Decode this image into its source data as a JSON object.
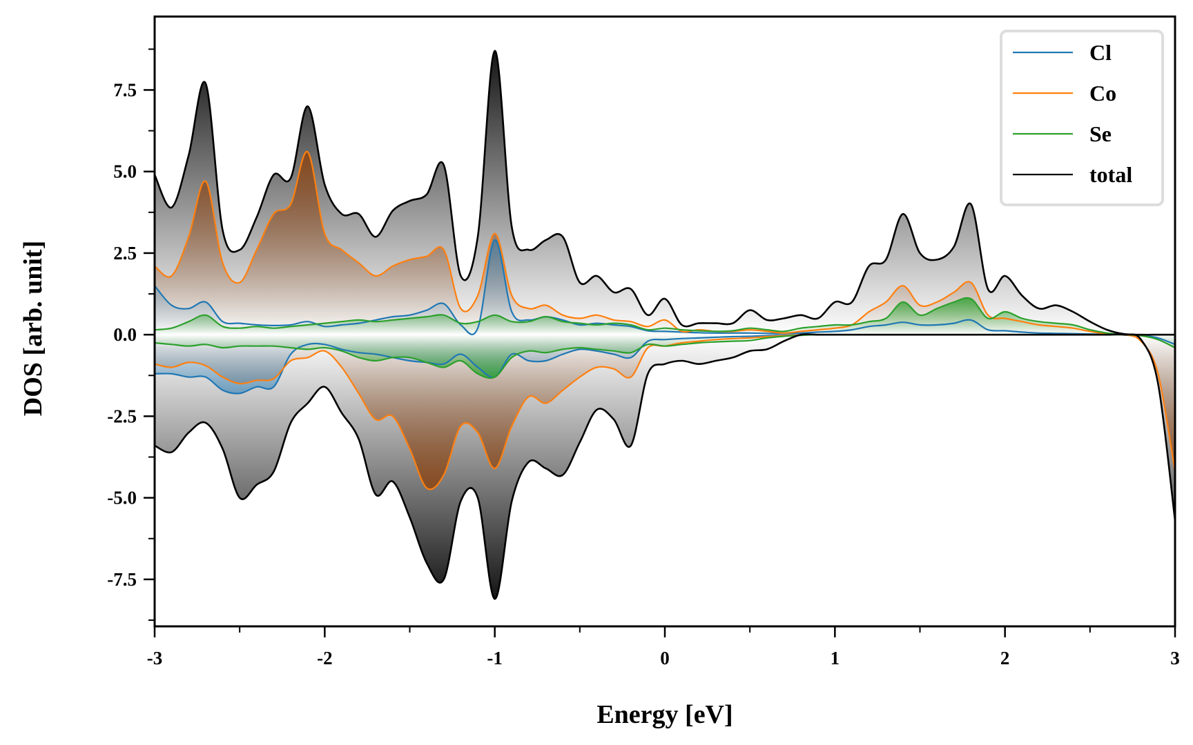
{
  "chart_data": {
    "type": "area",
    "title": "",
    "xlabel": "Energy [eV]",
    "ylabel": "DOS [arb. unit]",
    "xlim": [
      -3,
      3
    ],
    "ylim": [
      -8.94,
      9.75
    ],
    "xticks": [
      -3,
      -2,
      -1,
      0,
      1,
      2,
      3
    ],
    "xtick_labels": [
      "-3",
      "-2",
      "-1",
      "0",
      "1",
      "2",
      "3"
    ],
    "xminor_step": 0.5,
    "yticks": [
      -7.5,
      -5.0,
      -2.5,
      0.0,
      2.5,
      5.0,
      7.5
    ],
    "ytick_labels": [
      "-7.5",
      "-5.0",
      "-2.5",
      "0.0",
      "2.5",
      "5.0",
      "7.5"
    ],
    "yminor_step": 1.25,
    "grid": false,
    "legend_position": "top-right",
    "x": [
      -3.0,
      -2.9,
      -2.8,
      -2.7,
      -2.6,
      -2.5,
      -2.4,
      -2.3,
      -2.2,
      -2.1,
      -2.0,
      -1.9,
      -1.8,
      -1.7,
      -1.6,
      -1.5,
      -1.4,
      -1.3,
      -1.2,
      -1.1,
      -1.0,
      -0.9,
      -0.8,
      -0.7,
      -0.6,
      -0.5,
      -0.4,
      -0.3,
      -0.2,
      -0.1,
      0.0,
      0.1,
      0.2,
      0.3,
      0.4,
      0.5,
      0.6,
      0.7,
      0.8,
      0.9,
      1.0,
      1.1,
      1.2,
      1.3,
      1.4,
      1.5,
      1.6,
      1.7,
      1.8,
      1.9,
      2.0,
      2.1,
      2.2,
      2.3,
      2.4,
      2.5,
      2.6,
      2.7,
      2.8,
      2.9,
      3.0
    ],
    "series": [
      {
        "name": "Cl",
        "color": "#1f77b4",
        "fill_color": "#1f77b4",
        "up": [
          1.5,
          0.9,
          0.8,
          1.0,
          0.4,
          0.35,
          0.3,
          0.28,
          0.3,
          0.4,
          0.25,
          0.3,
          0.35,
          0.45,
          0.55,
          0.6,
          0.75,
          0.95,
          0.3,
          0.2,
          2.9,
          0.7,
          0.45,
          0.55,
          0.45,
          0.3,
          0.35,
          0.3,
          0.25,
          0.12,
          0.1,
          0.08,
          0.06,
          0.05,
          0.05,
          0.05,
          0.04,
          0.03,
          0.05,
          0.08,
          0.1,
          0.15,
          0.25,
          0.3,
          0.38,
          0.3,
          0.3,
          0.35,
          0.45,
          0.15,
          0.12,
          0.08,
          0.05,
          0.04,
          0.03,
          0.02,
          0.01,
          0.0,
          0.0,
          0.0,
          0.0
        ],
        "down": [
          -1.2,
          -1.2,
          -1.3,
          -1.3,
          -1.7,
          -1.8,
          -1.6,
          -1.6,
          -0.6,
          -0.3,
          -0.3,
          -0.45,
          -0.55,
          -0.6,
          -0.7,
          -0.8,
          -0.85,
          -0.9,
          -0.6,
          -1.0,
          -1.3,
          -0.6,
          -0.8,
          -0.8,
          -0.6,
          -0.45,
          -0.5,
          -0.6,
          -0.7,
          -0.2,
          -0.15,
          -0.12,
          -0.1,
          -0.08,
          -0.06,
          -0.05,
          -0.03,
          -0.02,
          -0.01,
          0.0,
          0.0,
          0.0,
          0.0,
          0.0,
          0.0,
          0.0,
          0.0,
          0.0,
          0.0,
          0.0,
          0.0,
          0.0,
          0.0,
          0.0,
          0.0,
          0.0,
          0.0,
          0.0,
          -0.02,
          -0.1,
          -0.3
        ]
      },
      {
        "name": "Co",
        "color": "#ff7f0e",
        "fill_color": "#8b4513",
        "up": [
          2.1,
          1.8,
          3.0,
          4.7,
          2.2,
          1.6,
          2.6,
          3.7,
          4.0,
          5.6,
          3.1,
          2.6,
          2.2,
          1.8,
          2.1,
          2.3,
          2.4,
          2.6,
          0.8,
          1.2,
          3.1,
          1.2,
          0.8,
          0.9,
          0.6,
          0.5,
          0.6,
          0.45,
          0.4,
          0.25,
          0.45,
          0.1,
          0.15,
          0.1,
          0.1,
          0.15,
          0.1,
          0.05,
          0.1,
          0.15,
          0.2,
          0.3,
          0.7,
          1.0,
          1.5,
          0.9,
          1.0,
          1.3,
          1.6,
          0.6,
          0.5,
          0.4,
          0.3,
          0.25,
          0.2,
          0.1,
          0.02,
          0.0,
          0.0,
          0.0,
          0.0
        ],
        "down": [
          -0.9,
          -1.0,
          -0.85,
          -0.95,
          -1.3,
          -1.5,
          -1.4,
          -1.35,
          -0.8,
          -0.7,
          -0.5,
          -1.0,
          -1.8,
          -2.6,
          -2.5,
          -3.5,
          -4.7,
          -4.3,
          -2.8,
          -3.0,
          -4.1,
          -2.8,
          -1.9,
          -2.1,
          -1.7,
          -1.3,
          -1.0,
          -1.05,
          -1.3,
          -0.4,
          -0.35,
          -0.25,
          -0.2,
          -0.15,
          -0.12,
          -0.1,
          -0.06,
          -0.03,
          -0.01,
          0.0,
          0.0,
          0.0,
          0.0,
          0.0,
          0.0,
          0.0,
          0.0,
          0.0,
          0.0,
          0.0,
          0.0,
          0.0,
          0.0,
          0.0,
          0.0,
          0.0,
          0.0,
          0.0,
          -0.2,
          -1.2,
          -4.2
        ]
      },
      {
        "name": "Se",
        "color": "#2ca02c",
        "fill_color": "#2ca02c",
        "up": [
          0.15,
          0.2,
          0.4,
          0.6,
          0.25,
          0.2,
          0.25,
          0.2,
          0.25,
          0.3,
          0.35,
          0.4,
          0.45,
          0.4,
          0.45,
          0.5,
          0.55,
          0.6,
          0.35,
          0.4,
          0.6,
          0.4,
          0.4,
          0.55,
          0.4,
          0.35,
          0.3,
          0.35,
          0.3,
          0.15,
          0.2,
          0.15,
          0.12,
          0.1,
          0.12,
          0.2,
          0.15,
          0.1,
          0.2,
          0.25,
          0.3,
          0.3,
          0.4,
          0.5,
          1.0,
          0.6,
          0.8,
          1.0,
          1.1,
          0.5,
          0.7,
          0.5,
          0.4,
          0.35,
          0.3,
          0.15,
          0.05,
          0.0,
          0.0,
          0.0,
          0.0
        ],
        "down": [
          -0.25,
          -0.3,
          -0.35,
          -0.3,
          -0.4,
          -0.35,
          -0.35,
          -0.35,
          -0.4,
          -0.45,
          -0.4,
          -0.5,
          -0.7,
          -0.8,
          -0.7,
          -0.7,
          -0.85,
          -1.0,
          -0.8,
          -1.2,
          -1.3,
          -0.7,
          -0.5,
          -0.55,
          -0.45,
          -0.4,
          -0.45,
          -0.5,
          -0.55,
          -0.3,
          -0.35,
          -0.3,
          -0.25,
          -0.22,
          -0.2,
          -0.18,
          -0.1,
          -0.05,
          -0.02,
          0.0,
          0.0,
          0.0,
          0.0,
          0.0,
          0.0,
          0.0,
          0.0,
          0.0,
          0.0,
          0.0,
          0.0,
          0.0,
          0.0,
          0.0,
          0.0,
          0.0,
          0.0,
          0.0,
          -0.03,
          -0.15,
          -0.4
        ]
      },
      {
        "name": "total",
        "color": "#000000",
        "fill_color": "#000000",
        "up": [
          4.9,
          3.9,
          5.5,
          7.7,
          3.2,
          2.6,
          3.6,
          4.9,
          4.8,
          7.0,
          4.6,
          3.7,
          3.7,
          3.0,
          3.8,
          4.1,
          4.3,
          5.2,
          1.8,
          3.0,
          8.7,
          3.3,
          2.6,
          2.9,
          3.0,
          1.6,
          1.8,
          1.3,
          1.4,
          0.6,
          1.1,
          0.3,
          0.35,
          0.35,
          0.35,
          0.75,
          0.45,
          0.5,
          0.6,
          0.5,
          1.0,
          1.0,
          2.1,
          2.3,
          3.7,
          2.5,
          2.3,
          2.7,
          4.0,
          1.4,
          1.8,
          1.2,
          0.8,
          0.9,
          0.7,
          0.4,
          0.15,
          0.02,
          0.0,
          0.0,
          0.0
        ],
        "down": [
          -3.4,
          -3.6,
          -3.0,
          -2.7,
          -3.5,
          -5.0,
          -4.6,
          -4.2,
          -2.7,
          -2.1,
          -1.6,
          -2.4,
          -3.2,
          -4.9,
          -4.5,
          -5.6,
          -7.0,
          -7.5,
          -5.1,
          -5.0,
          -8.1,
          -5.1,
          -3.9,
          -4.1,
          -4.3,
          -3.3,
          -2.3,
          -2.6,
          -3.4,
          -1.2,
          -0.9,
          -0.8,
          -0.9,
          -0.8,
          -0.7,
          -0.5,
          -0.45,
          -0.2,
          0.0,
          0.0,
          0.0,
          0.0,
          0.0,
          0.0,
          0.0,
          0.0,
          0.0,
          0.0,
          0.0,
          0.0,
          0.0,
          0.0,
          0.0,
          0.0,
          0.0,
          0.0,
          0.0,
          0.0,
          -0.15,
          -1.5,
          -5.7
        ]
      }
    ]
  }
}
